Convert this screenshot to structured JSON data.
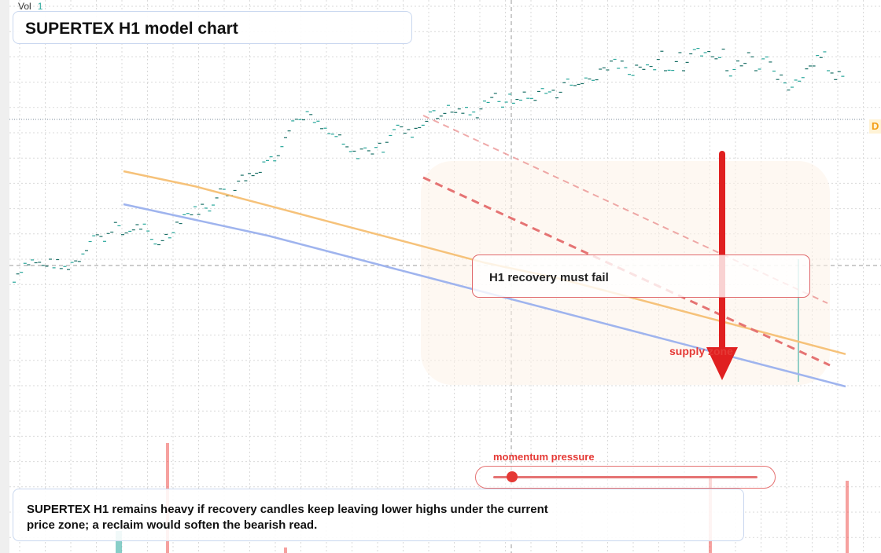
{
  "title": "SUPERTEX H1 model chart",
  "volume_indicator": {
    "label": "Vol",
    "value": "1"
  },
  "callout": {
    "text": "H1 recovery must fail"
  },
  "zone_label": "supply zone",
  "momentum": {
    "label": "momentum pressure",
    "level": 0.07
  },
  "summary": "SUPERTEX H1 remains heavy if recovery candles keep leaving lower highs under the current price zone; a reclaim would soften the bearish read.",
  "edge_label": "D",
  "colors": {
    "bull": "#26a69a",
    "bear": "#ef5350",
    "ma_fast": "#f6c27a",
    "ma_slow": "#9fb4ee",
    "resistance": "#e57373",
    "arrow": "#e02020",
    "grid": "#d9d9d9"
  },
  "chart_data": {
    "type": "candlestick",
    "grid": true,
    "crosshair": true,
    "series": [
      {
        "kind": "moving_average",
        "role": "fast",
        "values": [
          100,
          96,
          91,
          86,
          81,
          76,
          72,
          67,
          62,
          57,
          52
        ]
      },
      {
        "kind": "moving_average",
        "role": "slow",
        "values": [
          88,
          83,
          78,
          72,
          66,
          60,
          54,
          48,
          42,
          36,
          30
        ]
      },
      {
        "kind": "resistance_line",
        "style": "dashed",
        "values": [
          160,
          64
        ]
      },
      {
        "kind": "resistance_line",
        "style": "dashed_light",
        "values": [
          185,
          72
        ]
      }
    ],
    "annotations": [
      "supply zone",
      "H1 recovery must fail",
      "momentum pressure"
    ]
  }
}
